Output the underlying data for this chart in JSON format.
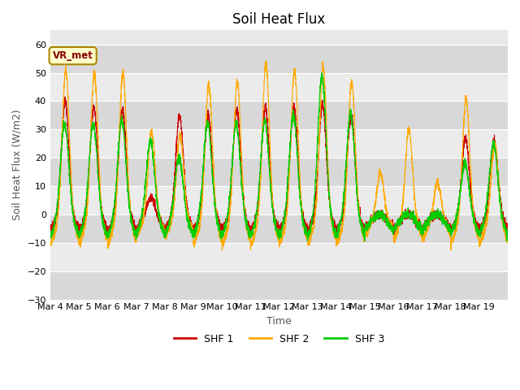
{
  "title": "Soil Heat Flux",
  "ylabel": "Soil Heat Flux (W/m2)",
  "xlabel": "Time",
  "ylim": [
    -30,
    65
  ],
  "yticks": [
    -30,
    -20,
    -10,
    0,
    10,
    20,
    30,
    40,
    50,
    60
  ],
  "xtick_labels": [
    "Mar 4",
    "Mar 5",
    "Mar 6",
    "Mar 7",
    "Mar 8",
    "Mar 9",
    "Mar 9",
    "Mar 10",
    "Mar 11",
    "Mar 12",
    "Mar 13",
    "Mar 14",
    "Mar 15",
    "Mar 16",
    "Mar 17",
    "Mar 18",
    "Mar 19"
  ],
  "legend_labels": [
    "SHF 1",
    "SHF 2",
    "SHF 3"
  ],
  "shf1_color": "#cc0000",
  "shf2_color": "#ffaa00",
  "shf3_color": "#00cc00",
  "annotation_text": "VR_met",
  "bg_color": "#ffffff",
  "plot_bg_color": "#e8e8e8",
  "band_color_dark": "#d8d8d8",
  "band_color_light": "#ebebeb",
  "title_fontsize": 12,
  "label_fontsize": 9,
  "tick_fontsize": 8
}
